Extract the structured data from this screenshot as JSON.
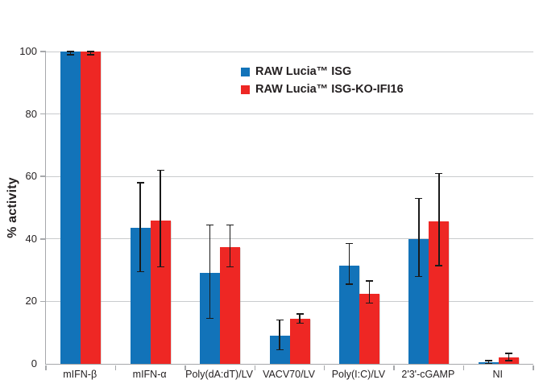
{
  "chart_data": {
    "type": "bar",
    "title": "",
    "xlabel": "",
    "ylabel": "% activity",
    "ylim": [
      0,
      100
    ],
    "yticks": [
      0,
      20,
      40,
      60,
      80,
      100
    ],
    "grid": true,
    "legend_position": "upper-center",
    "categories": [
      "mIFN-β",
      "mIFN-α",
      "Poly(dA:dT)/LV",
      "VACV70/LV",
      "Poly(I:C)/LV",
      "2'3'-cGAMP",
      "NI"
    ],
    "series": [
      {
        "name": "RAW Lucia™ ISG",
        "color": "#1273b9",
        "values": [
          100,
          43.5,
          29,
          9,
          31.5,
          40,
          0.5
        ],
        "error_low": [
          99,
          29.5,
          14.5,
          4.5,
          25.5,
          28,
          0.1
        ],
        "error_high": [
          100,
          58,
          44.5,
          14,
          38.5,
          53,
          1
        ]
      },
      {
        "name": "RAW Lucia™ ISG-KO-IFI16",
        "color": "#ee2724",
        "values": [
          100,
          46,
          37.5,
          14.5,
          22.5,
          45.5,
          2
        ],
        "error_low": [
          99,
          31,
          31,
          13,
          19.5,
          31.5,
          1
        ],
        "error_high": [
          100,
          62,
          44.5,
          16,
          26.5,
          61,
          3.3
        ]
      }
    ],
    "colors": {
      "gridline": "#c9cbcd",
      "axis": "#a6a8ab",
      "text": "#231f20",
      "error_bar": "#1a1a1a"
    }
  }
}
